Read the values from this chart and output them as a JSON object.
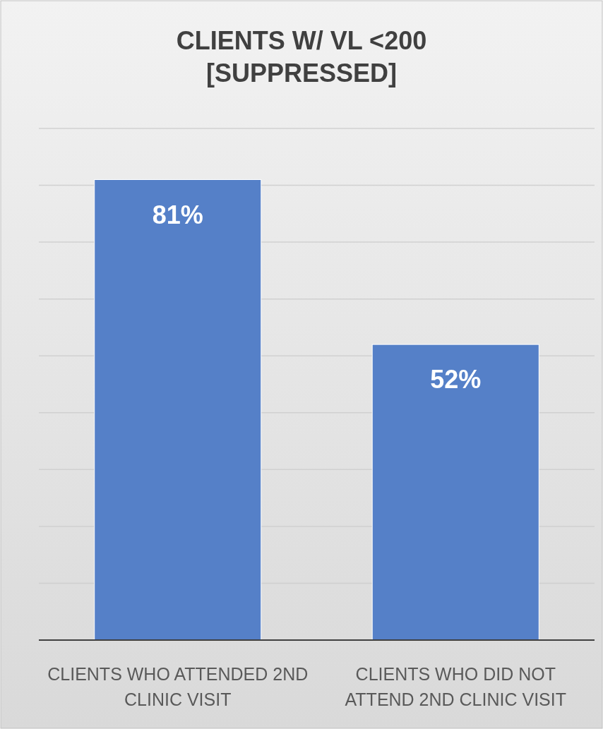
{
  "chart_data": {
    "type": "bar",
    "title": "CLIENTS W/ VL <200 [SUPPRESSED]",
    "categories": [
      "CLIENTS WHO ATTENDED 2ND CLINIC VISIT",
      "CLIENTS WHO DID NOT ATTEND 2ND CLINIC VISIT"
    ],
    "values": [
      81,
      52
    ],
    "value_labels": [
      "81%",
      "52%"
    ],
    "color": "#5580c8",
    "ylim": [
      0,
      90
    ],
    "yticks": [
      {
        "value": 0,
        "label": null
      },
      {
        "value": 10,
        "label": null
      },
      {
        "value": 20,
        "label": null
      },
      {
        "value": 30,
        "label": null
      },
      {
        "value": 40,
        "label": null
      },
      {
        "value": 50,
        "label": null
      },
      {
        "value": 60,
        "label": null
      },
      {
        "value": 70,
        "label": null
      },
      {
        "value": 80,
        "label": null
      },
      {
        "value": 90,
        "label": null
      }
    ],
    "grid": "y",
    "tick_labels": "x"
  }
}
